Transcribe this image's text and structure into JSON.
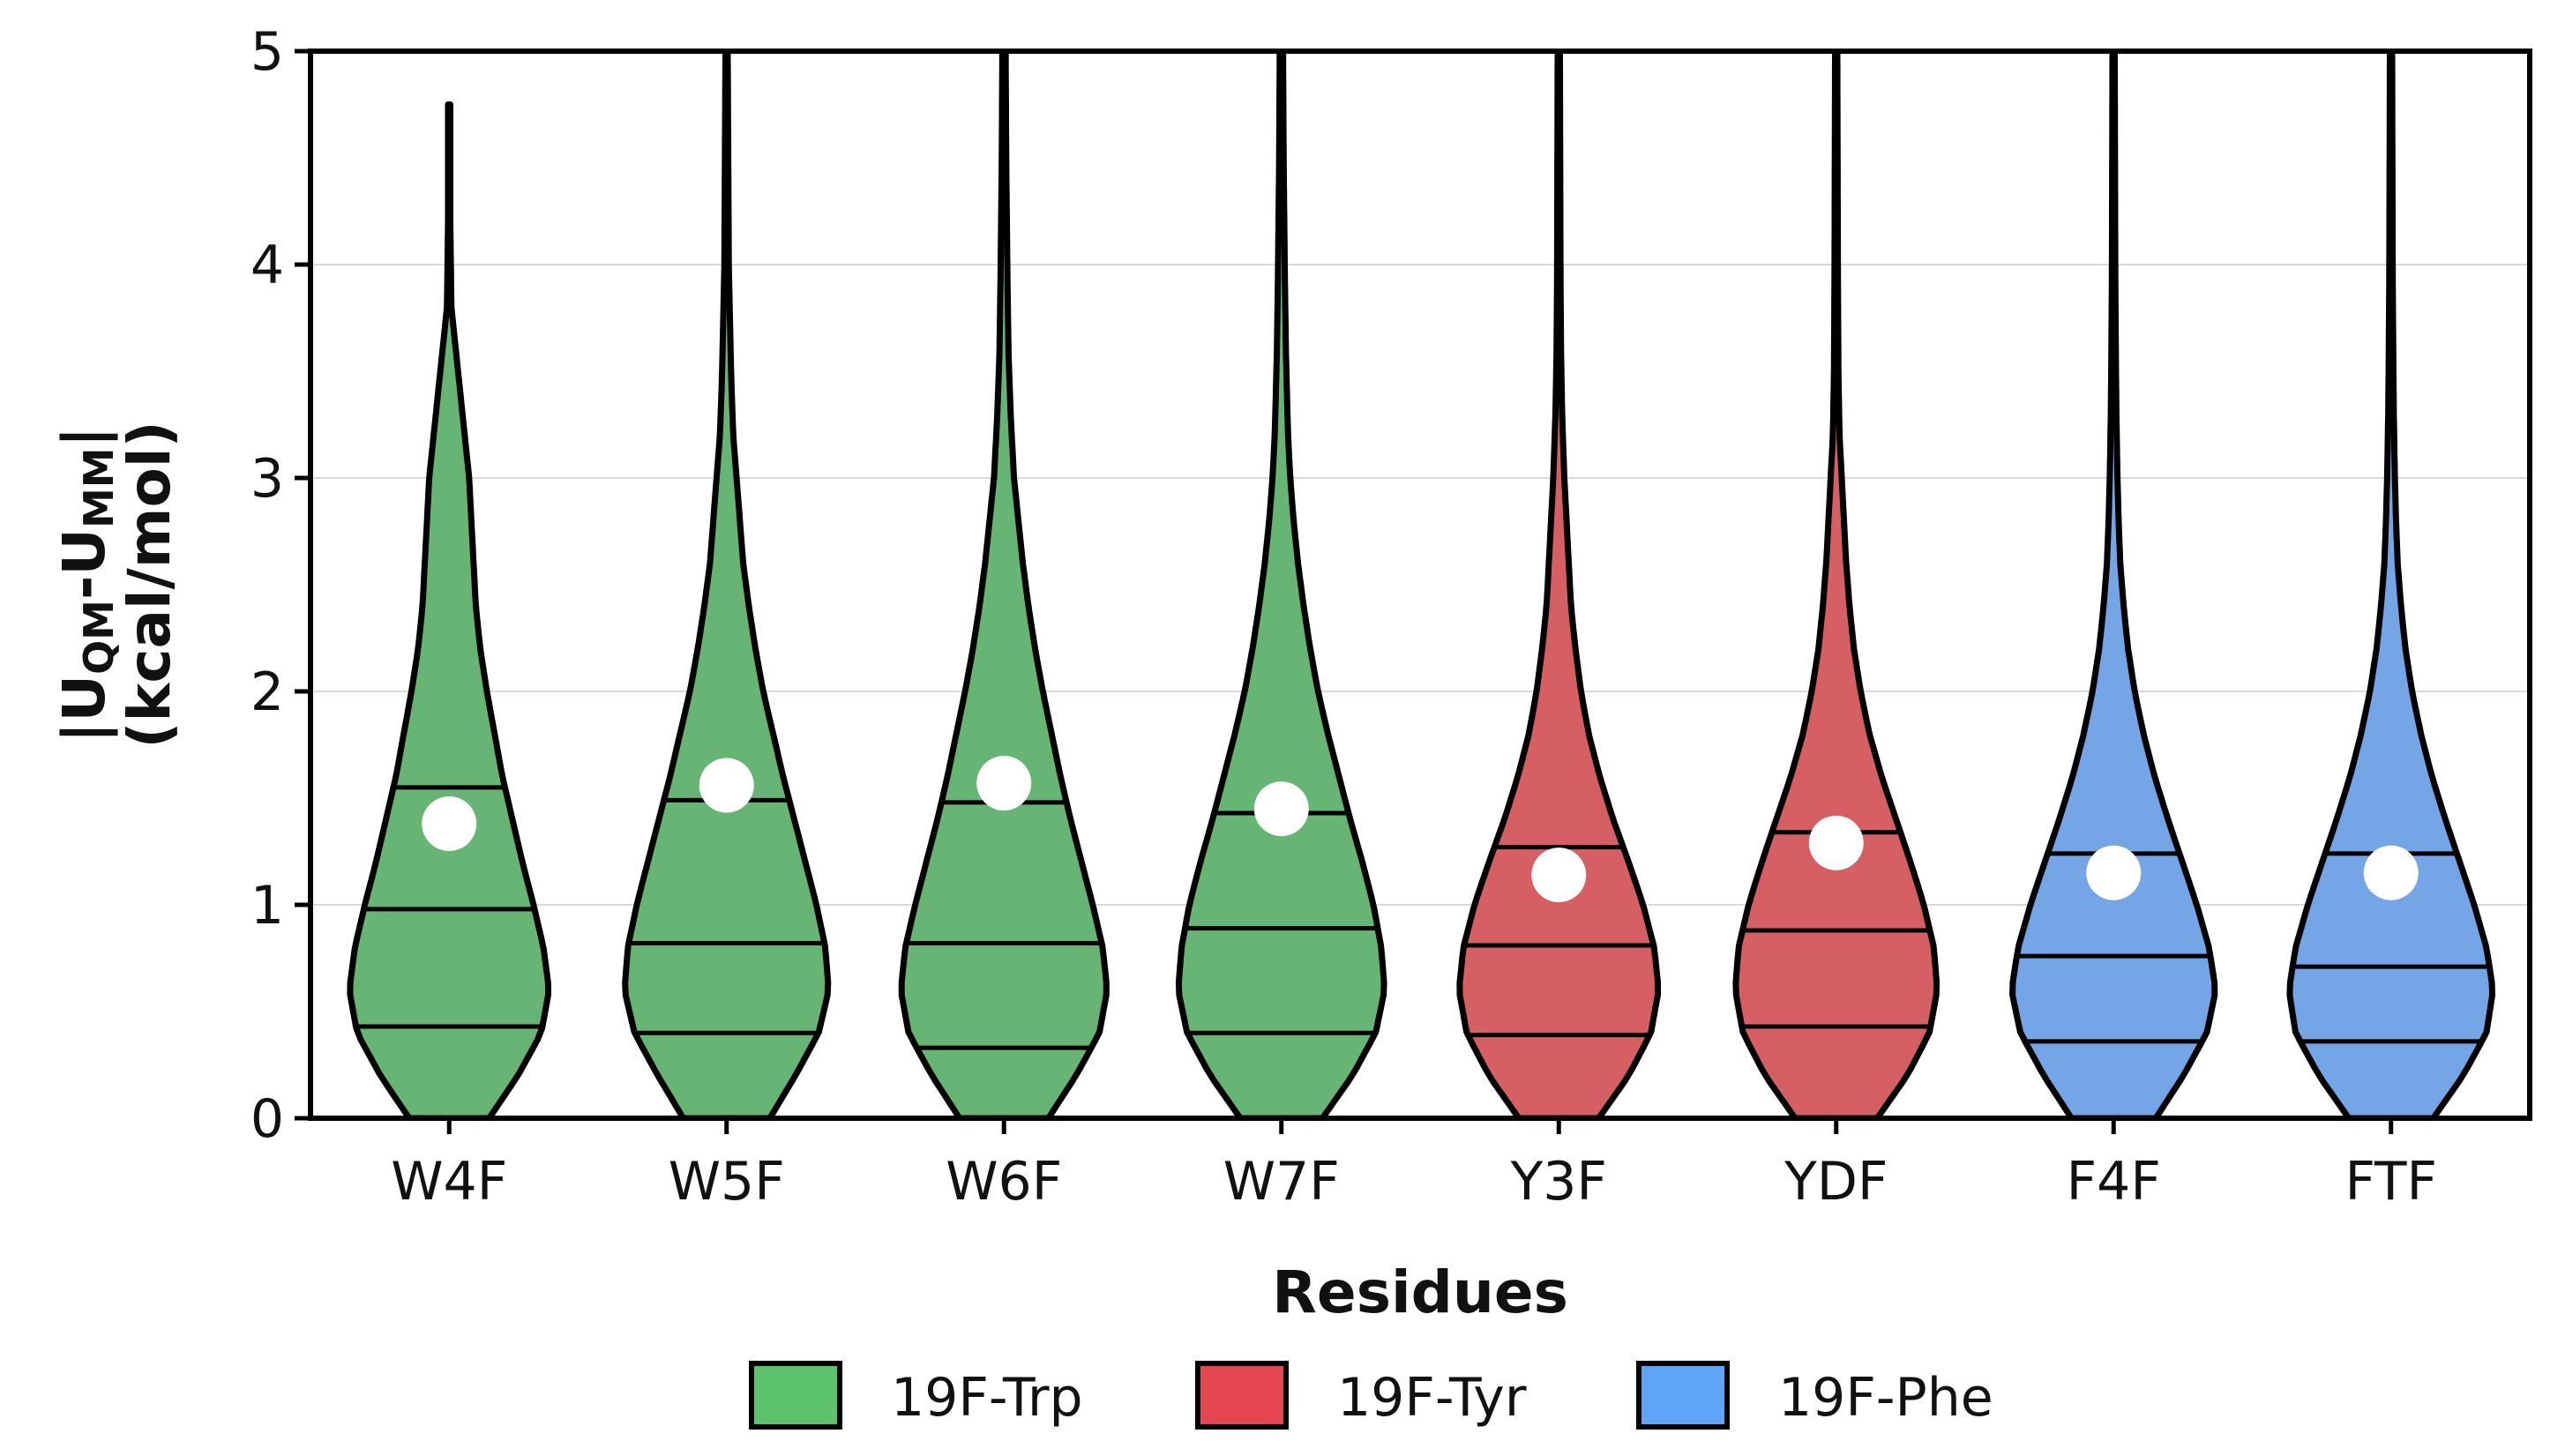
{
  "chart_data": {
    "type": "violin",
    "title": "",
    "xlabel": "Residues",
    "ylabel": {
      "line1_parts": [
        "|U",
        "QM",
        "-U",
        "MM",
        "|"
      ],
      "line2": "(kcal/mol)"
    },
    "ylim": [
      0,
      5
    ],
    "yticks": [
      "0",
      "1",
      "2",
      "3",
      "4",
      "5"
    ],
    "grid": "horizontal",
    "legend_position": "bottom-center",
    "groups": [
      {
        "name": "19F-Trp",
        "fill": "#66b575",
        "legend_color": "#5cc36c"
      },
      {
        "name": "19F-Tyr",
        "fill": "#d65f64",
        "legend_color": "#e4474f"
      },
      {
        "name": "19F-Phe",
        "fill": "#74a5e6",
        "legend_color": "#5ea4f7"
      }
    ],
    "categories": [
      "W4F",
      "W5F",
      "W6F",
      "W7F",
      "Y3F",
      "YDF",
      "F4F",
      "FTF"
    ],
    "series": [
      {
        "label": "W4F",
        "group": 0,
        "max": 4.75,
        "q1": 0.43,
        "median": 0.98,
        "q3": 1.55,
        "mean": 1.38,
        "profile": [
          [
            0,
            0.36
          ],
          [
            0.2,
            0.62
          ],
          [
            0.4,
            0.83
          ],
          [
            0.6,
            0.9
          ],
          [
            0.8,
            0.85
          ],
          [
            1.0,
            0.76
          ],
          [
            1.2,
            0.66
          ],
          [
            1.4,
            0.57
          ],
          [
            1.6,
            0.48
          ],
          [
            1.8,
            0.41
          ],
          [
            2.0,
            0.34
          ],
          [
            2.2,
            0.28
          ],
          [
            2.4,
            0.24
          ],
          [
            2.6,
            0.22
          ],
          [
            2.8,
            0.2
          ],
          [
            3.0,
            0.18
          ],
          [
            3.2,
            0.14
          ],
          [
            3.4,
            0.1
          ],
          [
            3.6,
            0.06
          ],
          [
            3.8,
            0.02
          ],
          [
            4.2,
            0.01
          ],
          [
            4.75,
            0.01
          ]
        ]
      },
      {
        "label": "W5F",
        "group": 0,
        "max": 5.2,
        "q1": 0.4,
        "median": 0.82,
        "q3": 1.49,
        "mean": 1.56,
        "profile": [
          [
            0,
            0.39
          ],
          [
            0.2,
            0.62
          ],
          [
            0.4,
            0.83
          ],
          [
            0.6,
            0.92
          ],
          [
            0.8,
            0.89
          ],
          [
            1.0,
            0.81
          ],
          [
            1.2,
            0.71
          ],
          [
            1.4,
            0.61
          ],
          [
            1.6,
            0.51
          ],
          [
            1.8,
            0.42
          ],
          [
            2.0,
            0.33
          ],
          [
            2.2,
            0.26
          ],
          [
            2.4,
            0.2
          ],
          [
            2.6,
            0.15
          ],
          [
            2.8,
            0.12
          ],
          [
            3.0,
            0.09
          ],
          [
            3.2,
            0.06
          ],
          [
            3.5,
            0.04
          ],
          [
            4.0,
            0.02
          ],
          [
            4.5,
            0.015
          ],
          [
            5.0,
            0.01
          ],
          [
            5.2,
            0.01
          ]
        ]
      },
      {
        "label": "W6F",
        "group": 0,
        "max": 5.2,
        "q1": 0.33,
        "median": 0.82,
        "q3": 1.48,
        "mean": 1.57,
        "profile": [
          [
            0,
            0.4
          ],
          [
            0.2,
            0.65
          ],
          [
            0.4,
            0.86
          ],
          [
            0.6,
            0.93
          ],
          [
            0.8,
            0.89
          ],
          [
            1.0,
            0.8
          ],
          [
            1.2,
            0.7
          ],
          [
            1.4,
            0.6
          ],
          [
            1.6,
            0.51
          ],
          [
            1.8,
            0.43
          ],
          [
            2.0,
            0.35
          ],
          [
            2.2,
            0.28
          ],
          [
            2.4,
            0.22
          ],
          [
            2.6,
            0.17
          ],
          [
            2.8,
            0.13
          ],
          [
            3.0,
            0.09
          ],
          [
            3.3,
            0.06
          ],
          [
            3.6,
            0.04
          ],
          [
            4.0,
            0.03
          ],
          [
            4.5,
            0.02
          ],
          [
            5.0,
            0.015
          ],
          [
            5.2,
            0.015
          ]
        ]
      },
      {
        "label": "W7F",
        "group": 0,
        "max": 5.2,
        "q1": 0.4,
        "median": 0.89,
        "q3": 1.43,
        "mean": 1.45,
        "profile": [
          [
            0,
            0.37
          ],
          [
            0.2,
            0.64
          ],
          [
            0.4,
            0.85
          ],
          [
            0.6,
            0.93
          ],
          [
            0.8,
            0.9
          ],
          [
            1.0,
            0.83
          ],
          [
            1.2,
            0.73
          ],
          [
            1.4,
            0.62
          ],
          [
            1.6,
            0.52
          ],
          [
            1.8,
            0.42
          ],
          [
            2.0,
            0.33
          ],
          [
            2.2,
            0.26
          ],
          [
            2.4,
            0.2
          ],
          [
            2.6,
            0.15
          ],
          [
            2.8,
            0.11
          ],
          [
            3.0,
            0.08
          ],
          [
            3.2,
            0.06
          ],
          [
            3.6,
            0.04
          ],
          [
            4.0,
            0.03
          ],
          [
            4.5,
            0.02
          ],
          [
            5.0,
            0.015
          ],
          [
            5.2,
            0.015
          ]
        ]
      },
      {
        "label": "Y3F",
        "group": 1,
        "max": 5.2,
        "q1": 0.39,
        "median": 0.81,
        "q3": 1.27,
        "mean": 1.14,
        "profile": [
          [
            0,
            0.36
          ],
          [
            0.2,
            0.63
          ],
          [
            0.4,
            0.83
          ],
          [
            0.6,
            0.9
          ],
          [
            0.8,
            0.86
          ],
          [
            1.0,
            0.76
          ],
          [
            1.2,
            0.63
          ],
          [
            1.4,
            0.49
          ],
          [
            1.6,
            0.37
          ],
          [
            1.8,
            0.27
          ],
          [
            2.0,
            0.2
          ],
          [
            2.2,
            0.15
          ],
          [
            2.4,
            0.11
          ],
          [
            2.6,
            0.09
          ],
          [
            2.8,
            0.07
          ],
          [
            3.0,
            0.05
          ],
          [
            3.3,
            0.03
          ],
          [
            3.6,
            0.02
          ],
          [
            4.0,
            0.015
          ],
          [
            5.0,
            0.01
          ],
          [
            5.2,
            0.01
          ]
        ]
      },
      {
        "label": "YDF",
        "group": 1,
        "max": 5.2,
        "q1": 0.43,
        "median": 0.88,
        "q3": 1.34,
        "mean": 1.29,
        "profile": [
          [
            0,
            0.37
          ],
          [
            0.2,
            0.64
          ],
          [
            0.4,
            0.84
          ],
          [
            0.6,
            0.91
          ],
          [
            0.8,
            0.88
          ],
          [
            1.0,
            0.79
          ],
          [
            1.2,
            0.67
          ],
          [
            1.4,
            0.54
          ],
          [
            1.6,
            0.41
          ],
          [
            1.8,
            0.3
          ],
          [
            2.0,
            0.22
          ],
          [
            2.2,
            0.16
          ],
          [
            2.4,
            0.12
          ],
          [
            2.6,
            0.09
          ],
          [
            2.8,
            0.07
          ],
          [
            3.0,
            0.05
          ],
          [
            3.2,
            0.03
          ],
          [
            3.5,
            0.02
          ],
          [
            4.0,
            0.015
          ],
          [
            5.0,
            0.01
          ],
          [
            5.2,
            0.01
          ]
        ]
      },
      {
        "label": "F4F",
        "group": 2,
        "max": 5.2,
        "q1": 0.36,
        "median": 0.76,
        "q3": 1.24,
        "mean": 1.15,
        "profile": [
          [
            0,
            0.38
          ],
          [
            0.2,
            0.63
          ],
          [
            0.4,
            0.84
          ],
          [
            0.6,
            0.92
          ],
          [
            0.8,
            0.86
          ],
          [
            1.0,
            0.75
          ],
          [
            1.2,
            0.62
          ],
          [
            1.4,
            0.49
          ],
          [
            1.6,
            0.37
          ],
          [
            1.8,
            0.27
          ],
          [
            2.0,
            0.19
          ],
          [
            2.2,
            0.13
          ],
          [
            2.4,
            0.09
          ],
          [
            2.6,
            0.06
          ],
          [
            2.8,
            0.045
          ],
          [
            3.0,
            0.035
          ],
          [
            3.3,
            0.025
          ],
          [
            3.6,
            0.02
          ],
          [
            4.0,
            0.015
          ],
          [
            5.0,
            0.01
          ],
          [
            5.2,
            0.01
          ]
        ]
      },
      {
        "label": "FTF",
        "group": 2,
        "max": 5.2,
        "q1": 0.36,
        "median": 0.71,
        "q3": 1.24,
        "mean": 1.15,
        "profile": [
          [
            0,
            0.38
          ],
          [
            0.2,
            0.65
          ],
          [
            0.4,
            0.86
          ],
          [
            0.6,
            0.92
          ],
          [
            0.8,
            0.86
          ],
          [
            1.0,
            0.75
          ],
          [
            1.2,
            0.62
          ],
          [
            1.4,
            0.49
          ],
          [
            1.6,
            0.37
          ],
          [
            1.8,
            0.27
          ],
          [
            2.0,
            0.19
          ],
          [
            2.2,
            0.13
          ],
          [
            2.4,
            0.09
          ],
          [
            2.6,
            0.06
          ],
          [
            2.8,
            0.045
          ],
          [
            3.0,
            0.035
          ],
          [
            3.3,
            0.025
          ],
          [
            3.6,
            0.02
          ],
          [
            4.0,
            0.015
          ],
          [
            5.0,
            0.01
          ],
          [
            5.2,
            0.01
          ]
        ]
      }
    ]
  }
}
